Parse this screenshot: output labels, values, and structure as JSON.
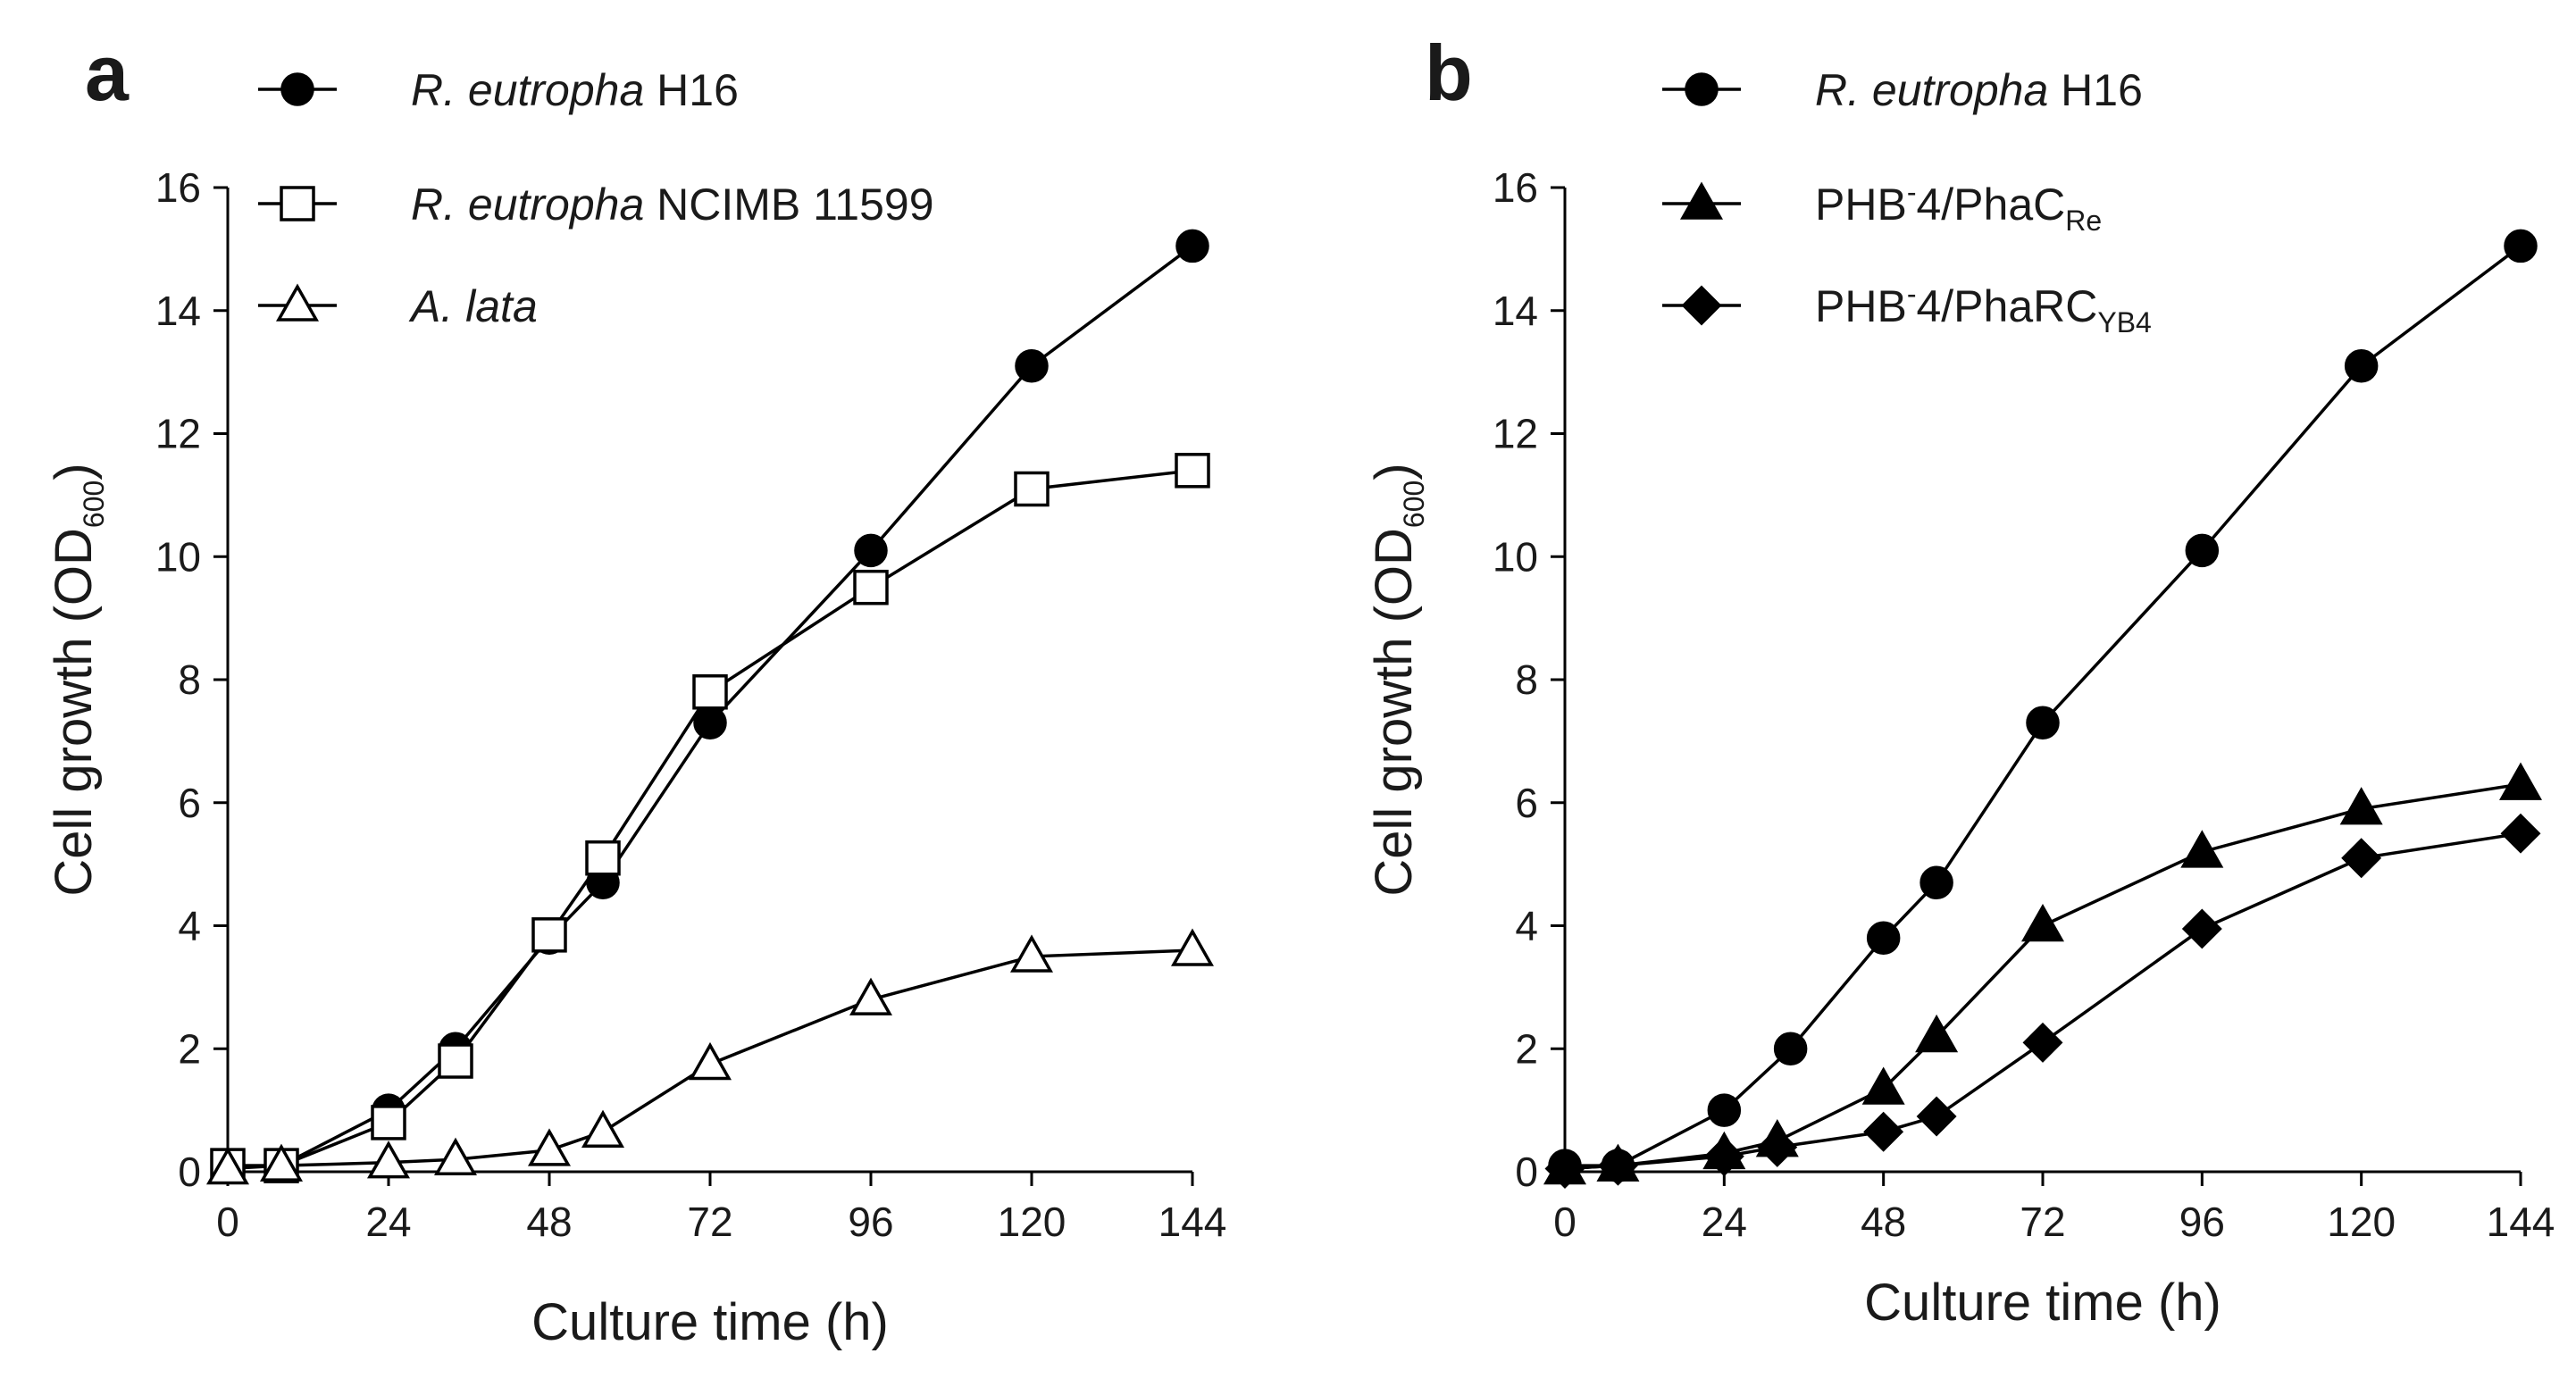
{
  "chart_data": [
    {
      "panel_label": "a",
      "type": "line",
      "xlabel": "Culture time (h)",
      "ylabel_main": "Cell growth (OD",
      "ylabel_sub": "600",
      "ylabel_close": ")",
      "xlim": [
        0,
        144
      ],
      "ylim": [
        0,
        16
      ],
      "xticks": [
        0,
        24,
        48,
        72,
        96,
        120,
        144
      ],
      "yticks": [
        0,
        2,
        4,
        6,
        8,
        10,
        12,
        14,
        16
      ],
      "legend_position": "top-left",
      "series": [
        {
          "name": "R. eutropha H16",
          "legend": {
            "italic": "R. eutropha",
            "rest": " H16",
            "sub": "",
            "sup": "",
            "tail": ""
          },
          "marker": "circle",
          "fill": "#000000",
          "x": [
            0,
            8,
            24,
            34,
            48,
            56,
            72,
            96,
            120,
            144
          ],
          "y": [
            0.1,
            0.1,
            1.0,
            2.0,
            3.8,
            4.7,
            7.3,
            10.1,
            13.1,
            15.05
          ]
        },
        {
          "name": "R. eutropha NCIMB 11599",
          "legend": {
            "italic": "R. eutropha",
            "rest": " NCIMB 11599",
            "sub": "",
            "sup": "",
            "tail": ""
          },
          "marker": "square",
          "fill": "#ffffff",
          "x": [
            0,
            8,
            24,
            34,
            48,
            56,
            72,
            96,
            120,
            144
          ],
          "y": [
            0.1,
            0.1,
            0.8,
            1.8,
            3.85,
            5.1,
            7.8,
            9.5,
            11.1,
            11.4
          ]
        },
        {
          "name": "A. lata",
          "legend": {
            "italic": "A. lata",
            "rest": "",
            "sub": "",
            "sup": "",
            "tail": ""
          },
          "marker": "triangle",
          "fill": "#ffffff",
          "x": [
            0,
            8,
            24,
            34,
            48,
            56,
            72,
            96,
            120,
            144
          ],
          "y": [
            0.05,
            0.1,
            0.15,
            0.2,
            0.35,
            0.65,
            1.75,
            2.8,
            3.5,
            3.6
          ]
        }
      ]
    },
    {
      "panel_label": "b",
      "type": "line",
      "xlabel": "Culture time (h)",
      "ylabel_main": "Cell growth (OD",
      "ylabel_sub": "600",
      "ylabel_close": ")",
      "xlim": [
        0,
        144
      ],
      "ylim": [
        0,
        16
      ],
      "xticks": [
        0,
        24,
        48,
        72,
        96,
        120,
        144
      ],
      "yticks": [
        0,
        2,
        4,
        6,
        8,
        10,
        12,
        14,
        16
      ],
      "legend_position": "top-left",
      "series": [
        {
          "name": "R. eutropha H16",
          "legend": {
            "italic": "R. eutropha",
            "rest": " H16",
            "sub": "",
            "sup": "",
            "tail": ""
          },
          "marker": "circle",
          "fill": "#000000",
          "x": [
            0,
            8,
            24,
            34,
            48,
            56,
            72,
            96,
            120,
            144
          ],
          "y": [
            0.1,
            0.1,
            1.0,
            2.0,
            3.8,
            4.7,
            7.3,
            10.1,
            13.1,
            15.05
          ]
        },
        {
          "name": "PHB-4/PhaCRe",
          "legend": {
            "italic": "",
            "rest": "PHB",
            "sup": "-",
            "tail": "4/PhaC",
            "sub": "Re"
          },
          "marker": "triangle",
          "fill": "#000000",
          "x": [
            0,
            8,
            24,
            32,
            48,
            56,
            72,
            96,
            120,
            144
          ],
          "y": [
            0.05,
            0.1,
            0.3,
            0.5,
            1.35,
            2.2,
            4.0,
            5.2,
            5.9,
            6.3
          ]
        },
        {
          "name": "PHB-4/PhaRCYB4",
          "legend": {
            "italic": "",
            "rest": "PHB",
            "sup": "-",
            "tail": "4/PhaRC",
            "sub": "YB4"
          },
          "marker": "diamond",
          "fill": "#000000",
          "x": [
            0,
            8,
            24,
            32,
            48,
            56,
            72,
            96,
            120,
            144
          ],
          "y": [
            0.05,
            0.1,
            0.25,
            0.4,
            0.65,
            0.9,
            2.1,
            3.95,
            5.1,
            5.5
          ]
        }
      ]
    }
  ]
}
